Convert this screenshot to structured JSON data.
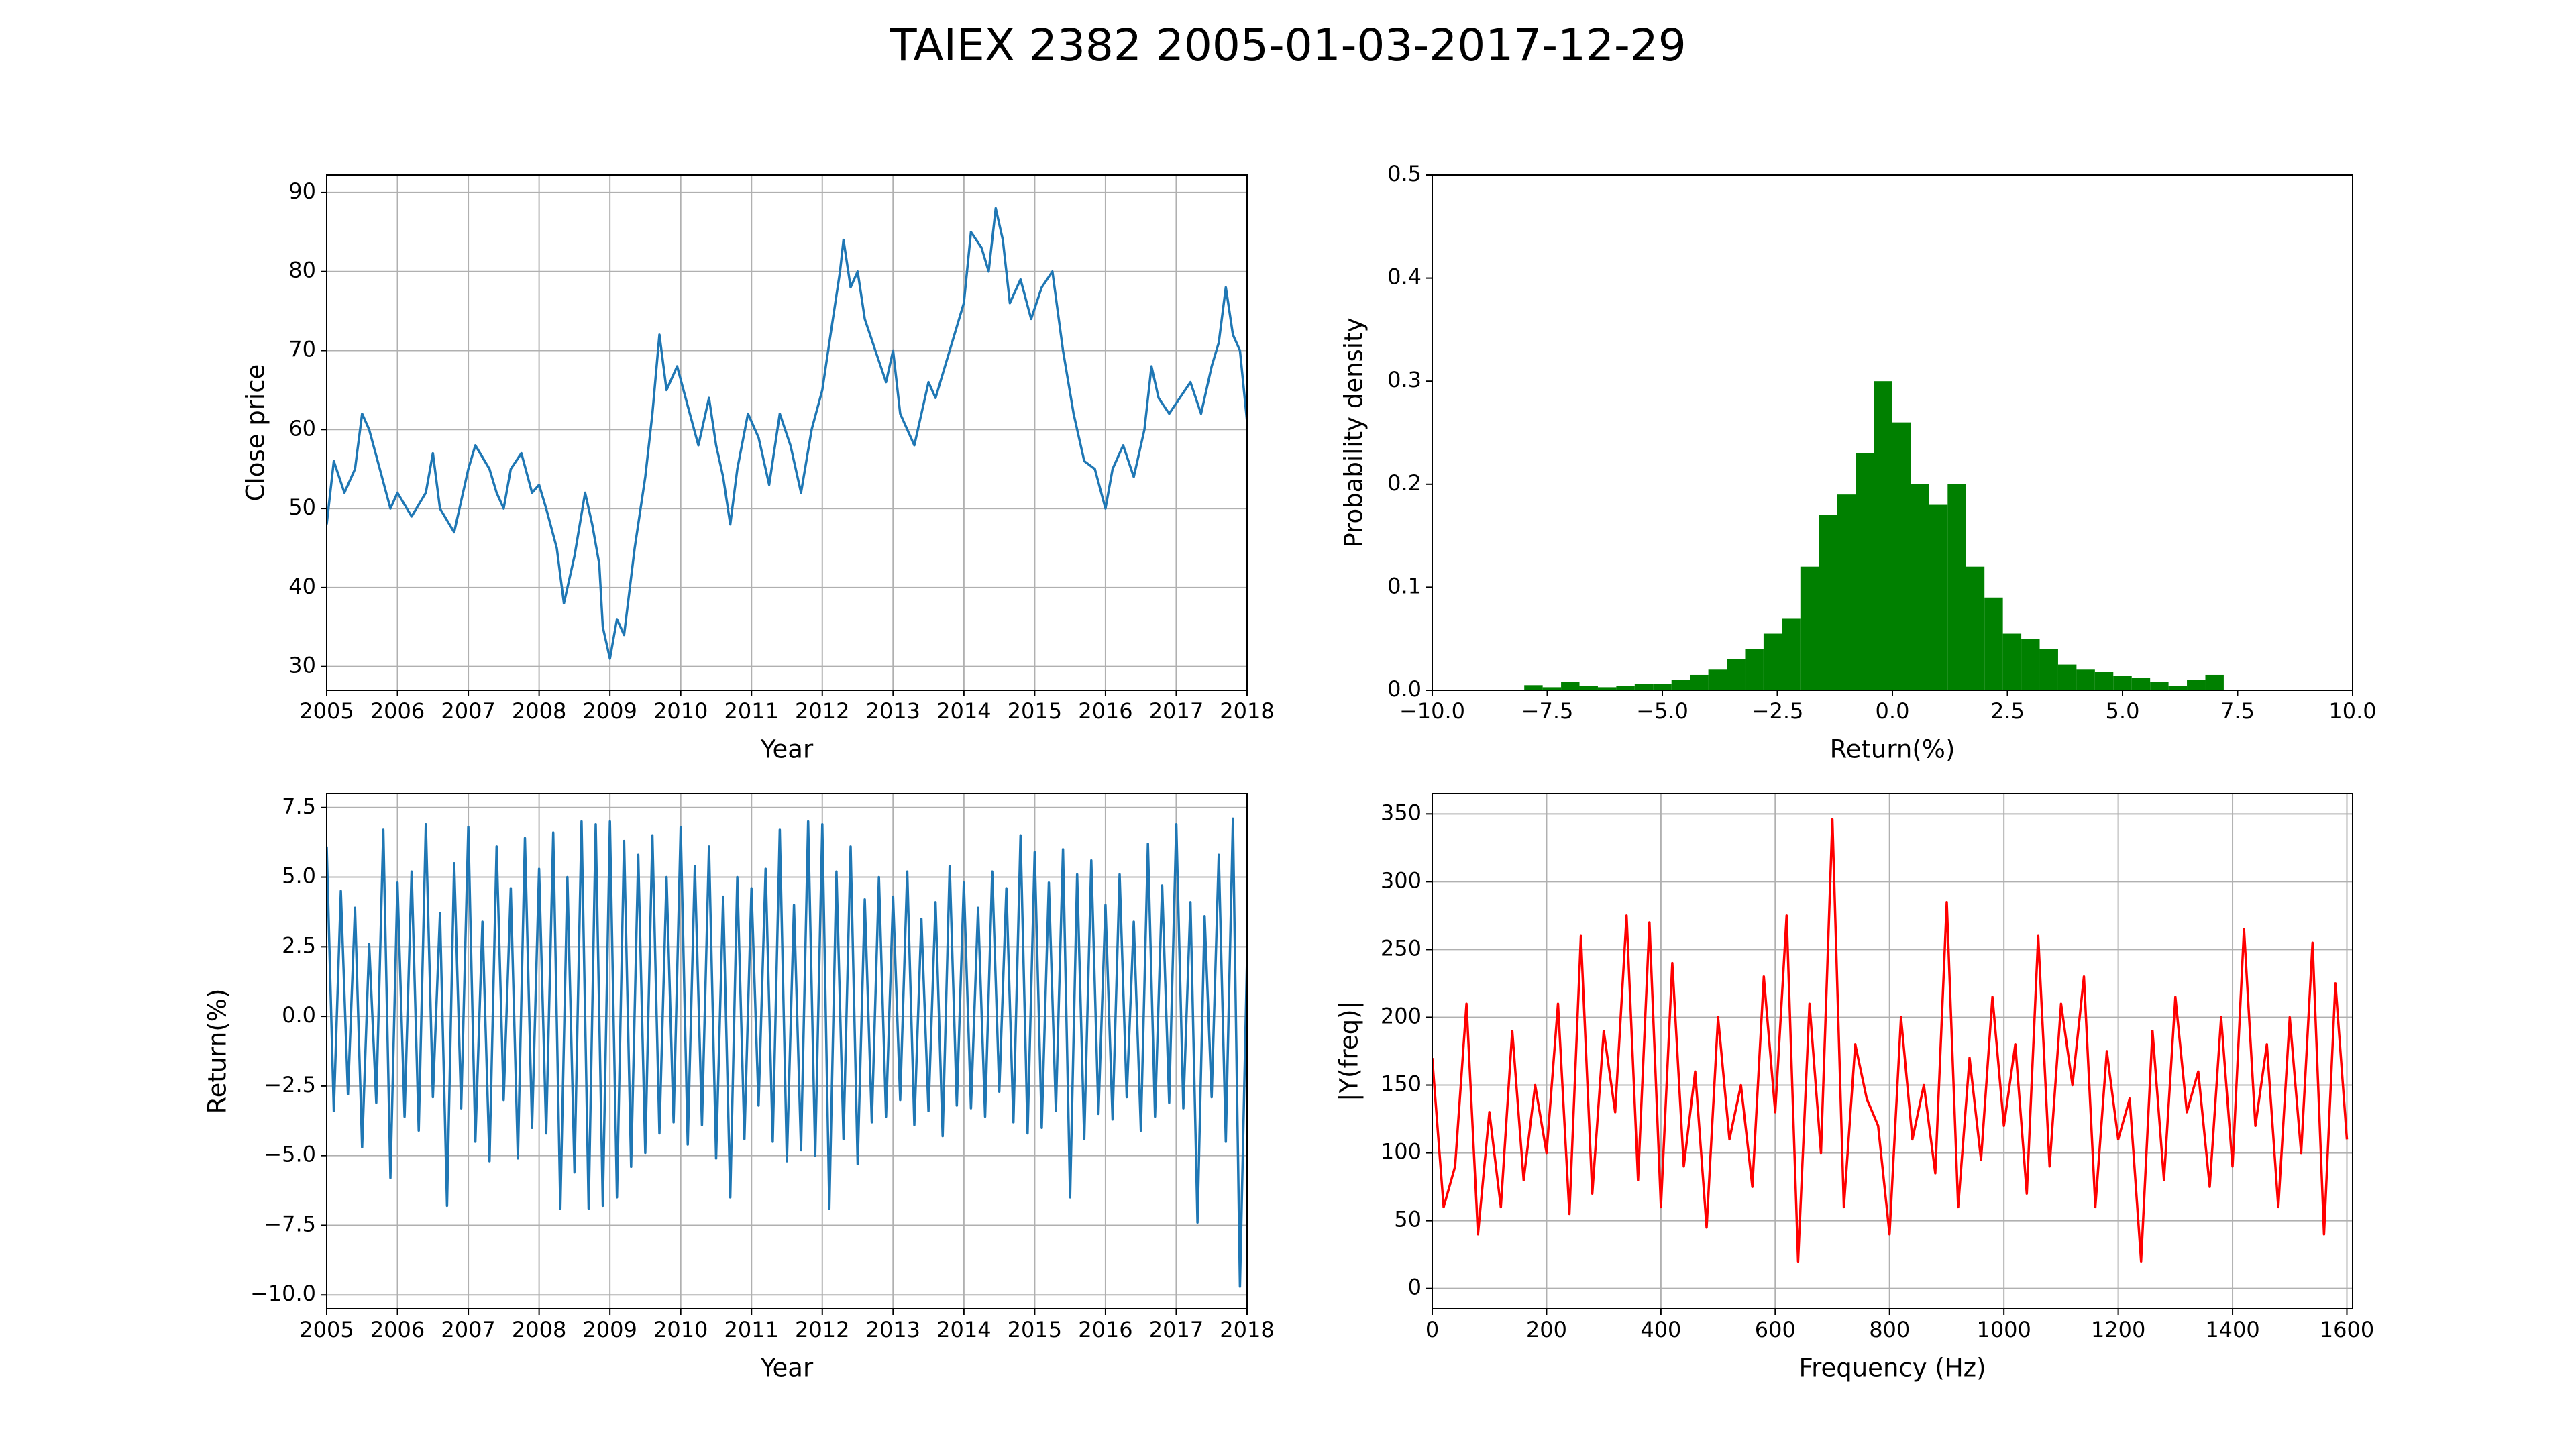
{
  "title": "TAIEX 2382 2005-01-03-2017-12-29",
  "chart_data": [
    {
      "type": "line",
      "color": "#1f77b4",
      "grid": true,
      "xlabel": "Year",
      "ylabel": "Close price",
      "xlim": [
        2005,
        2018
      ],
      "ylim": [
        27,
        92.2
      ],
      "xticks": [
        2005,
        2006,
        2007,
        2008,
        2009,
        2010,
        2011,
        2012,
        2013,
        2014,
        2015,
        2016,
        2017,
        2018
      ],
      "yticks": [
        30,
        40,
        50,
        60,
        70,
        80,
        90
      ],
      "x": [
        2005.0,
        2005.1,
        2005.25,
        2005.4,
        2005.5,
        2005.6,
        2005.75,
        2005.9,
        2006.0,
        2006.2,
        2006.4,
        2006.5,
        2006.6,
        2006.8,
        2007.0,
        2007.1,
        2007.3,
        2007.4,
        2007.5,
        2007.6,
        2007.75,
        2007.9,
        2008.0,
        2008.1,
        2008.25,
        2008.35,
        2008.5,
        2008.65,
        2008.75,
        2008.85,
        2008.9,
        2009.0,
        2009.1,
        2009.2,
        2009.35,
        2009.5,
        2009.6,
        2009.7,
        2009.8,
        2009.95,
        2010.1,
        2010.25,
        2010.4,
        2010.5,
        2010.6,
        2010.7,
        2010.8,
        2010.95,
        2011.1,
        2011.25,
        2011.4,
        2011.55,
        2011.7,
        2011.85,
        2012.0,
        2012.1,
        2012.25,
        2012.3,
        2012.4,
        2012.5,
        2012.6,
        2012.75,
        2012.9,
        2013.0,
        2013.1,
        2013.3,
        2013.5,
        2013.6,
        2013.8,
        2014.0,
        2014.1,
        2014.25,
        2014.35,
        2014.45,
        2014.55,
        2014.65,
        2014.8,
        2014.95,
        2015.1,
        2015.25,
        2015.4,
        2015.55,
        2015.7,
        2015.85,
        2016.0,
        2016.1,
        2016.25,
        2016.4,
        2016.55,
        2016.65,
        2016.75,
        2016.9,
        2017.05,
        2017.2,
        2017.35,
        2017.5,
        2017.6,
        2017.7,
        2017.8,
        2017.9,
        2018.0
      ],
      "values": [
        48,
        56,
        52,
        55,
        62,
        60,
        55,
        50,
        52,
        49,
        52,
        57,
        50,
        47,
        55,
        58,
        55,
        52,
        50,
        55,
        57,
        52,
        53,
        50,
        45,
        38,
        44,
        52,
        48,
        43,
        35,
        31,
        36,
        34,
        45,
        54,
        62,
        72,
        65,
        68,
        63,
        58,
        64,
        58,
        54,
        48,
        55,
        62,
        59,
        53,
        62,
        58,
        52,
        60,
        65,
        71,
        80,
        84,
        78,
        80,
        74,
        70,
        66,
        70,
        62,
        58,
        66,
        64,
        70,
        76,
        85,
        83,
        80,
        88,
        84,
        76,
        79,
        74,
        78,
        80,
        70,
        62,
        56,
        55,
        50,
        55,
        58,
        54,
        60,
        68,
        64,
        62,
        64,
        66,
        62,
        68,
        71,
        78,
        72,
        70,
        61
      ]
    },
    {
      "type": "histogram",
      "color": "#008000",
      "grid": false,
      "xlabel": "Return(%)",
      "ylabel": "Probability density",
      "xlim": [
        -10,
        10
      ],
      "ylim": [
        0,
        0.5
      ],
      "xticks": [
        {
          "value": -10,
          "label": "−10.0"
        },
        {
          "value": -7.5,
          "label": "−7.5"
        },
        {
          "value": -5,
          "label": "−5.0"
        },
        {
          "value": -2.5,
          "label": "−2.5"
        },
        {
          "value": 0,
          "label": "0.0"
        },
        2.5,
        {
          "value": 5,
          "label": "5.0"
        },
        7.5,
        {
          "value": 10,
          "label": "10.0"
        }
      ],
      "yticks": [
        {
          "value": 0,
          "label": "0.0"
        },
        0.1,
        0.2,
        0.3,
        0.4,
        0.5
      ],
      "bins": [
        -8,
        -7.6,
        -7.2,
        -6.8,
        -6.4,
        -6,
        -5.6,
        -5.2,
        -4.8,
        -4.4,
        -4,
        -3.6,
        -3.2,
        -2.8,
        -2.4,
        -2,
        -1.6,
        -1.2,
        -0.8,
        -0.4,
        0,
        0.4,
        0.8,
        1.2,
        1.6,
        2,
        2.4,
        2.8,
        3.2,
        3.6,
        4,
        4.4,
        4.8,
        5.2,
        5.6,
        6,
        6.4,
        6.8,
        7.2
      ],
      "values": [
        0.005,
        0.003,
        0.008,
        0.004,
        0.003,
        0.004,
        0.006,
        0.006,
        0.01,
        0.015,
        0.02,
        0.03,
        0.04,
        0.055,
        0.07,
        0.12,
        0.17,
        0.19,
        0.23,
        0.3,
        0.26,
        0.2,
        0.18,
        0.2,
        0.12,
        0.09,
        0.055,
        0.05,
        0.04,
        0.025,
        0.02,
        0.018,
        0.014,
        0.012,
        0.008,
        0.004,
        0.01,
        0.015
      ]
    },
    {
      "type": "line",
      "color": "#1f77b4",
      "grid": true,
      "xlabel": "Year",
      "ylabel": "Return(%)",
      "xlim": [
        2005,
        2018
      ],
      "ylim": [
        -10.5,
        8
      ],
      "xticks": [
        2005,
        2006,
        2007,
        2008,
        2009,
        2010,
        2011,
        2012,
        2013,
        2014,
        2015,
        2016,
        2017,
        2018
      ],
      "yticks": [
        {
          "value": -10,
          "label": "−10.0"
        },
        {
          "value": -7.5,
          "label": "−7.5"
        },
        {
          "value": -5,
          "label": "−5.0"
        },
        {
          "value": -2.5,
          "label": "−2.5"
        },
        {
          "value": 0,
          "label": "0.0"
        },
        2.5,
        {
          "value": 5,
          "label": "5.0"
        },
        7.5
      ],
      "x": [
        2005.0,
        2005.1,
        2005.2,
        2005.3,
        2005.4,
        2005.5,
        2005.6,
        2005.7,
        2005.8,
        2005.9,
        2006.0,
        2006.1,
        2006.2,
        2006.3,
        2006.4,
        2006.5,
        2006.6,
        2006.7,
        2006.8,
        2006.9,
        2007.0,
        2007.1,
        2007.2,
        2007.3,
        2007.4,
        2007.5,
        2007.6,
        2007.7,
        2007.8,
        2007.9,
        2008.0,
        2008.1,
        2008.2,
        2008.3,
        2008.4,
        2008.5,
        2008.6,
        2008.7,
        2008.8,
        2008.9,
        2009.0,
        2009.1,
        2009.2,
        2009.3,
        2009.4,
        2009.5,
        2009.6,
        2009.7,
        2009.8,
        2009.9,
        2010.0,
        2010.1,
        2010.2,
        2010.3,
        2010.4,
        2010.5,
        2010.6,
        2010.7,
        2010.8,
        2010.9,
        2011.0,
        2011.1,
        2011.2,
        2011.3,
        2011.4,
        2011.5,
        2011.6,
        2011.7,
        2011.8,
        2011.9,
        2012.0,
        2012.1,
        2012.2,
        2012.3,
        2012.4,
        2012.5,
        2012.6,
        2012.7,
        2012.8,
        2012.9,
        2013.0,
        2013.1,
        2013.2,
        2013.3,
        2013.4,
        2013.5,
        2013.6,
        2013.7,
        2013.8,
        2013.9,
        2014.0,
        2014.1,
        2014.2,
        2014.3,
        2014.4,
        2014.5,
        2014.6,
        2014.7,
        2014.8,
        2014.9,
        2015.0,
        2015.1,
        2015.2,
        2015.3,
        2015.4,
        2015.5,
        2015.6,
        2015.7,
        2015.8,
        2015.9,
        2016.0,
        2016.1,
        2016.2,
        2016.3,
        2016.4,
        2016.5,
        2016.6,
        2016.7,
        2016.8,
        2016.9,
        2017.0,
        2017.1,
        2017.2,
        2017.3,
        2017.4,
        2017.5,
        2017.6,
        2017.7,
        2017.8,
        2017.9,
        2018.0
      ],
      "values": [
        6.1,
        -3.4,
        4.5,
        -2.8,
        3.9,
        -4.7,
        2.6,
        -3.1,
        6.7,
        -5.8,
        4.8,
        -3.6,
        5.2,
        -4.1,
        6.9,
        -2.9,
        3.7,
        -6.8,
        5.5,
        -3.3,
        6.8,
        -4.5,
        3.4,
        -5.2,
        6.1,
        -3.0,
        4.6,
        -5.1,
        6.4,
        -4.0,
        5.3,
        -4.2,
        6.6,
        -6.9,
        5.0,
        -5.6,
        7.0,
        -6.9,
        6.9,
        -6.8,
        7.0,
        -6.5,
        6.3,
        -5.4,
        5.8,
        -4.9,
        6.5,
        -4.2,
        5.0,
        -3.8,
        6.8,
        -4.6,
        5.4,
        -3.9,
        6.1,
        -5.1,
        4.3,
        -6.5,
        5.0,
        -4.4,
        4.6,
        -3.2,
        5.3,
        -4.5,
        6.7,
        -5.2,
        4.0,
        -4.8,
        7.0,
        -5.0,
        6.9,
        -6.9,
        5.2,
        -4.4,
        6.1,
        -5.3,
        4.2,
        -3.8,
        5.0,
        -3.6,
        4.3,
        -3.0,
        5.2,
        -3.9,
        3.5,
        -3.4,
        4.1,
        -4.3,
        5.4,
        -3.2,
        4.8,
        -3.3,
        3.9,
        -3.6,
        5.2,
        -2.7,
        4.6,
        -3.8,
        6.5,
        -4.2,
        5.9,
        -4.0,
        4.8,
        -3.4,
        6.0,
        -6.5,
        5.1,
        -4.4,
        5.6,
        -3.5,
        4.0,
        -3.7,
        5.1,
        -2.9,
        3.4,
        -4.1,
        6.2,
        -3.6,
        4.7,
        -3.1,
        6.9,
        -3.3,
        4.1,
        -7.4,
        3.6,
        -2.9,
        5.8,
        -4.5,
        7.1,
        -9.7,
        2.1
      ]
    },
    {
      "type": "line",
      "color": "#ff0000",
      "grid": true,
      "xlabel": "Frequency (Hz)",
      "ylabel": "|Y(freq)|",
      "xlim": [
        0,
        1610
      ],
      "ylim": [
        -15,
        365
      ],
      "xticks": [
        0,
        200,
        400,
        600,
        800,
        1000,
        1200,
        1400,
        1600
      ],
      "yticks": [
        0,
        50,
        100,
        150,
        200,
        250,
        300,
        350
      ],
      "x": [
        0,
        20,
        40,
        60,
        80,
        100,
        120,
        140,
        160,
        180,
        200,
        220,
        240,
        260,
        280,
        300,
        320,
        340,
        360,
        380,
        400,
        420,
        440,
        460,
        480,
        500,
        520,
        540,
        560,
        580,
        600,
        620,
        640,
        660,
        680,
        700,
        720,
        740,
        760,
        780,
        800,
        820,
        840,
        860,
        880,
        900,
        920,
        940,
        960,
        980,
        1000,
        1020,
        1040,
        1060,
        1080,
        1100,
        1120,
        1140,
        1160,
        1180,
        1200,
        1220,
        1240,
        1260,
        1280,
        1300,
        1320,
        1340,
        1360,
        1380,
        1400,
        1420,
        1440,
        1460,
        1480,
        1500,
        1520,
        1540,
        1560,
        1580,
        1600
      ],
      "values": [
        170,
        60,
        90,
        210,
        40,
        130,
        60,
        190,
        80,
        150,
        100,
        210,
        55,
        260,
        70,
        190,
        130,
        275,
        80,
        270,
        60,
        240,
        90,
        160,
        45,
        200,
        110,
        150,
        75,
        230,
        130,
        275,
        20,
        210,
        100,
        346,
        60,
        180,
        140,
        120,
        40,
        200,
        110,
        150,
        85,
        285,
        60,
        170,
        95,
        215,
        120,
        180,
        70,
        260,
        90,
        210,
        150,
        230,
        60,
        175,
        110,
        140,
        20,
        190,
        80,
        215,
        130,
        160,
        75,
        200,
        90,
        265,
        120,
        180,
        60,
        200,
        100,
        255,
        40,
        225,
        110
      ]
    }
  ]
}
